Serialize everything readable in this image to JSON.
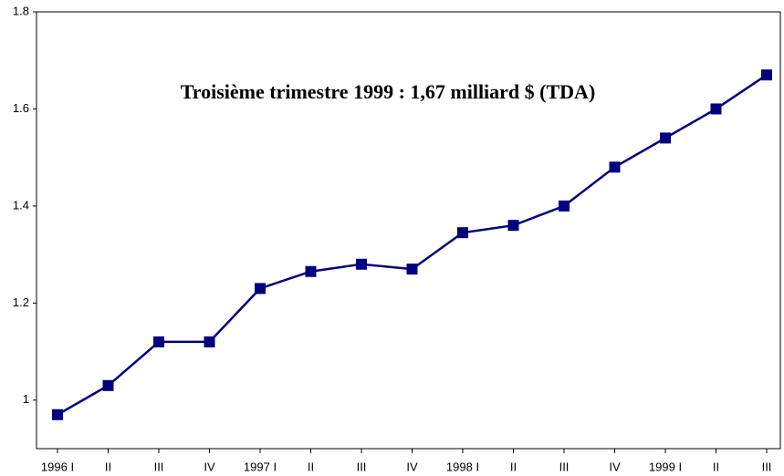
{
  "chart_data": {
    "type": "line",
    "annotation": "Troisième trimestre 1999 : 1,67 milliard $ (TDA)",
    "categories": [
      "1996 I",
      "II",
      "III",
      "IV",
      "1997 I",
      "II",
      "III",
      "IV",
      "1998 I",
      "II",
      "III",
      "IV",
      "1999 I",
      "II",
      "III"
    ],
    "values": [
      0.97,
      1.03,
      1.12,
      1.12,
      1.23,
      1.265,
      1.28,
      1.27,
      1.345,
      1.36,
      1.4,
      1.48,
      1.54,
      1.6,
      1.67
    ],
    "color": "#000080",
    "ylim": [
      0.9,
      1.8
    ],
    "yticks": [
      1,
      1.2,
      1.4,
      1.6,
      1.8
    ]
  }
}
